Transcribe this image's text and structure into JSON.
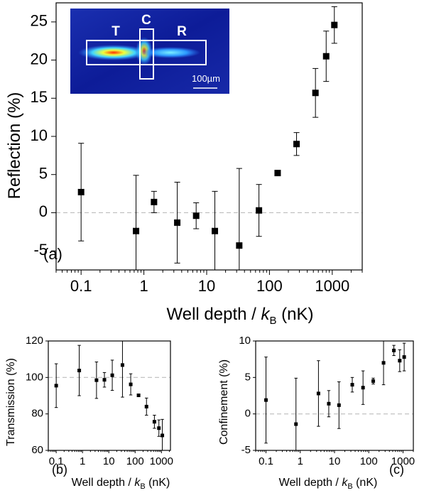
{
  "chart_data": [
    {
      "panel": "a",
      "type": "scatter",
      "panel_label": "(a)",
      "title": "",
      "xlabel_prefix": "Well depth / ",
      "xlabel_var": "k",
      "xlabel_sub": "B",
      "xlabel_suffix": " (nK)",
      "ylabel": "Reflection (%)",
      "x_scale": "log",
      "xlim": [
        0.04,
        3000
      ],
      "ylim": [
        -7.5,
        27.5
      ],
      "xticks": [
        0.1,
        1,
        10,
        100,
        1000
      ],
      "xtick_labels": [
        "0.1",
        "1",
        "10",
        "100",
        "1000"
      ],
      "yticks": [
        -5,
        0,
        5,
        10,
        15,
        20,
        25
      ],
      "ytick_labels": [
        "-5",
        "0",
        "5",
        "10",
        "15",
        "20",
        "25"
      ],
      "reference_line": 0,
      "marker": "square",
      "color": "#000000",
      "points": [
        {
          "x": 0.1,
          "y": 2.7,
          "err": 6.4
        },
        {
          "x": 0.75,
          "y": -2.4,
          "err": 7.3
        },
        {
          "x": 1.45,
          "y": 1.4,
          "err": 1.4
        },
        {
          "x": 3.4,
          "y": -1.3,
          "err": 5.3
        },
        {
          "x": 6.8,
          "y": -0.4,
          "err": 1.7
        },
        {
          "x": 13.5,
          "y": -2.4,
          "err": 5.2
        },
        {
          "x": 33,
          "y": -4.3,
          "err": 10.1
        },
        {
          "x": 68,
          "y": 0.3,
          "err": 3.4
        },
        {
          "x": 135,
          "y": 5.2,
          "err": 0
        },
        {
          "x": 270,
          "y": 9.0,
          "err": 1.5
        },
        {
          "x": 540,
          "y": 15.7,
          "err": 3.2
        },
        {
          "x": 800,
          "y": 20.5,
          "err": 3.3
        },
        {
          "x": 1080,
          "y": 24.6,
          "err": 2.4
        }
      ],
      "inset": {
        "regions": [
          "T",
          "C",
          "R"
        ],
        "scale_bar": "100µm",
        "background": "#10209a",
        "beam_colors": [
          "#2d7bff",
          "#41d6ff",
          "#f2ff3a",
          "#ff2a00"
        ]
      }
    },
    {
      "panel": "b",
      "type": "scatter",
      "panel_label": "(b)",
      "title": "",
      "xlabel_prefix": "Well depth / ",
      "xlabel_var": "k",
      "xlabel_sub": "B",
      "xlabel_suffix": " (nK)",
      "ylabel": "Transmission (%)",
      "x_scale": "log",
      "xlim": [
        0.05,
        2200
      ],
      "ylim": [
        60,
        120
      ],
      "xticks": [
        0.1,
        1,
        10,
        100,
        1000
      ],
      "xtick_labels": [
        "0.1",
        "1",
        "10",
        "100",
        "1000"
      ],
      "yticks": [
        60,
        80,
        100,
        120
      ],
      "ytick_labels": [
        "60",
        "80",
        "100",
        "120"
      ],
      "reference_line": 100,
      "marker": "square",
      "color": "#000000",
      "points": [
        {
          "x": 0.1,
          "y": 95.5,
          "err": 12
        },
        {
          "x": 0.75,
          "y": 103.8,
          "err": 13.8
        },
        {
          "x": 3.4,
          "y": 98.5,
          "err": 10
        },
        {
          "x": 6.8,
          "y": 98.7,
          "err": 4
        },
        {
          "x": 13.5,
          "y": 101.2,
          "err": 8.3
        },
        {
          "x": 33,
          "y": 106.8,
          "err": 17.6
        },
        {
          "x": 68,
          "y": 96.2,
          "err": 5.8
        },
        {
          "x": 135,
          "y": 90.2,
          "err": 0.6
        },
        {
          "x": 270,
          "y": 84,
          "err": 4.7
        },
        {
          "x": 540,
          "y": 75.7,
          "err": 3.6
        },
        {
          "x": 800,
          "y": 72.2,
          "err": 4.5
        },
        {
          "x": 1080,
          "y": 68.2,
          "err": 8.8
        }
      ]
    },
    {
      "panel": "c",
      "type": "scatter",
      "panel_label": "(c)",
      "title": "",
      "xlabel_prefix": "Well depth / ",
      "xlabel_var": "k",
      "xlabel_sub": "B",
      "xlabel_suffix": " (nK)",
      "ylabel": "Confinement (%)",
      "x_scale": "log",
      "xlim": [
        0.05,
        2000
      ],
      "ylim": [
        -5,
        10
      ],
      "xticks": [
        0.1,
        1,
        10,
        100,
        1000
      ],
      "xtick_labels": [
        "0.1",
        "1",
        "10",
        "100",
        "1000"
      ],
      "yticks": [
        -5,
        0,
        5,
        10
      ],
      "ytick_labels": [
        "-5",
        "0",
        "5",
        "10"
      ],
      "reference_line": 0,
      "marker": "square",
      "color": "#000000",
      "points": [
        {
          "x": 0.1,
          "y": 1.9,
          "err": 5.9
        },
        {
          "x": 0.75,
          "y": -1.4,
          "err": 6.3
        },
        {
          "x": 3.4,
          "y": 2.8,
          "err": 4.5
        },
        {
          "x": 6.8,
          "y": 1.4,
          "err": 1.8
        },
        {
          "x": 13.5,
          "y": 1.2,
          "err": 3.2
        },
        {
          "x": 33,
          "y": 4.0,
          "err": 1.0
        },
        {
          "x": 68,
          "y": 3.6,
          "err": 2.3
        },
        {
          "x": 135,
          "y": 4.5,
          "err": 0.4
        },
        {
          "x": 270,
          "y": 7.0,
          "err": 3.0
        },
        {
          "x": 540,
          "y": 8.7,
          "err": 0.7
        },
        {
          "x": 800,
          "y": 7.3,
          "err": 1.5
        },
        {
          "x": 1080,
          "y": 7.8,
          "err": 1.9
        }
      ]
    }
  ]
}
